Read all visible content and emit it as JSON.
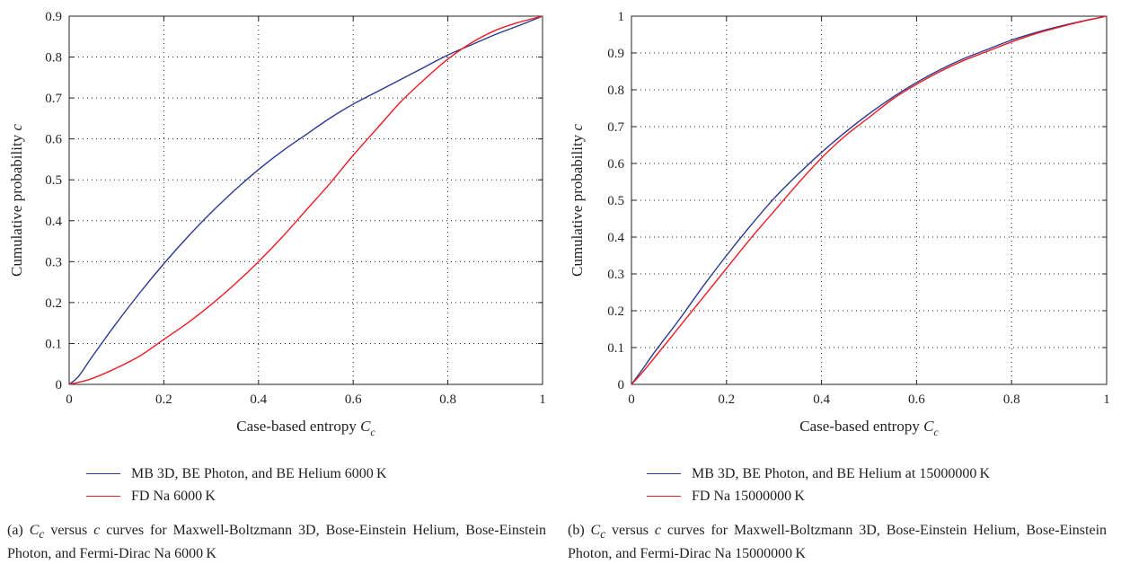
{
  "colors": {
    "series1": "#2b3990",
    "series2": "#ed1c24",
    "axis": "#231f20",
    "grid": "#231f20"
  },
  "panels": [
    {
      "caption": {
        "prefix": "(a)",
        "symbol": "C",
        "subscript": "c",
        "middle": "versus",
        "var": "c",
        "rest": "curves for Maxwell-Boltzmann 3D, Bose-Einstein Helium, Bose-Einstein Photon, and Fermi-Dirac Na 6000 K"
      }
    },
    {
      "caption": {
        "prefix": "(b)",
        "symbol": "C",
        "subscript": "c",
        "middle": "versus",
        "var": "c",
        "rest": "curves for Maxwell-Boltzmann 3D, Bose-Einstein Helium, Bose-Einstein Photon, and Fermi-Dirac Na 15000000 K"
      }
    }
  ],
  "chart_data": [
    {
      "type": "line",
      "xlabel": "Case-based entropy",
      "xlabel_symbol": "C",
      "xlabel_sub": "c",
      "ylabel": "Cumulative probability",
      "ylabel_symbol": "c",
      "xlim": [
        0,
        1
      ],
      "ylim": [
        0,
        0.9
      ],
      "xticks": [
        0,
        0.2,
        0.4,
        0.6,
        0.8,
        1
      ],
      "xtick_labels": [
        "0",
        "0.2",
        "0.4",
        "0.6",
        "0.8",
        "1"
      ],
      "yticks": [
        0,
        0.1,
        0.2,
        0.3,
        0.4,
        0.5,
        0.6,
        0.7,
        0.8,
        0.9
      ],
      "ytick_labels": [
        "0",
        "0.1",
        "0.2",
        "0.3",
        "0.4",
        "0.5",
        "0.6",
        "0.7",
        "0.8",
        "0.9"
      ],
      "grid": true,
      "legend_position": "below",
      "series": [
        {
          "name": "MB 3D, BE Photon, and BE Helium 6000 K",
          "color": "#2b3990",
          "x": [
            0,
            0.02,
            0.05,
            0.1,
            0.15,
            0.2,
            0.25,
            0.3,
            0.35,
            0.4,
            0.45,
            0.5,
            0.55,
            0.6,
            0.65,
            0.7,
            0.75,
            0.8,
            0.85,
            0.9,
            0.95,
            1
          ],
          "y": [
            0,
            0.02,
            0.07,
            0.15,
            0.225,
            0.295,
            0.36,
            0.42,
            0.475,
            0.525,
            0.57,
            0.61,
            0.65,
            0.685,
            0.715,
            0.745,
            0.775,
            0.805,
            0.83,
            0.855,
            0.877,
            0.9
          ]
        },
        {
          "name": "FD Na 6000 K",
          "color": "#ed1c24",
          "x": [
            0,
            0.02,
            0.05,
            0.1,
            0.15,
            0.2,
            0.25,
            0.3,
            0.35,
            0.4,
            0.45,
            0.5,
            0.55,
            0.6,
            0.65,
            0.7,
            0.75,
            0.8,
            0.85,
            0.9,
            0.95,
            1
          ],
          "y": [
            0,
            0.005,
            0.015,
            0.04,
            0.07,
            0.11,
            0.15,
            0.195,
            0.245,
            0.3,
            0.36,
            0.425,
            0.49,
            0.56,
            0.625,
            0.69,
            0.745,
            0.795,
            0.835,
            0.865,
            0.885,
            0.9
          ]
        }
      ]
    },
    {
      "type": "line",
      "xlabel": "Case-based entropy",
      "xlabel_symbol": "C",
      "xlabel_sub": "c",
      "ylabel": "Cumulative probability",
      "ylabel_symbol": "c",
      "xlim": [
        0,
        1
      ],
      "ylim": [
        0,
        1
      ],
      "xticks": [
        0,
        0.2,
        0.4,
        0.6,
        0.8,
        1
      ],
      "xtick_labels": [
        "0",
        "0.2",
        "0.4",
        "0.6",
        "0.8",
        "1"
      ],
      "yticks": [
        0,
        0.1,
        0.2,
        0.3,
        0.4,
        0.5,
        0.6,
        0.7,
        0.8,
        0.9,
        1
      ],
      "ytick_labels": [
        "0",
        "0.1",
        "0.2",
        "0.3",
        "0.4",
        "0.5",
        "0.6",
        "0.7",
        "0.8",
        "0.9",
        "1"
      ],
      "grid": true,
      "legend_position": "below",
      "series": [
        {
          "name": "MB 3D, BE Photon, and BE Helium at 15000000 K",
          "color": "#2b3990",
          "x": [
            0,
            0.02,
            0.05,
            0.1,
            0.15,
            0.2,
            0.25,
            0.3,
            0.35,
            0.4,
            0.45,
            0.5,
            0.55,
            0.6,
            0.65,
            0.7,
            0.75,
            0.8,
            0.85,
            0.9,
            0.95,
            1
          ],
          "y": [
            0,
            0.035,
            0.09,
            0.175,
            0.265,
            0.35,
            0.43,
            0.505,
            0.57,
            0.63,
            0.685,
            0.735,
            0.78,
            0.82,
            0.855,
            0.885,
            0.91,
            0.935,
            0.955,
            0.972,
            0.987,
            1
          ]
        },
        {
          "name": "FD Na 15000000 K",
          "color": "#ed1c24",
          "x": [
            0,
            0.02,
            0.05,
            0.1,
            0.15,
            0.2,
            0.25,
            0.3,
            0.35,
            0.4,
            0.45,
            0.5,
            0.55,
            0.6,
            0.65,
            0.7,
            0.75,
            0.8,
            0.85,
            0.9,
            0.95,
            1
          ],
          "y": [
            0,
            0.028,
            0.075,
            0.155,
            0.235,
            0.315,
            0.395,
            0.47,
            0.545,
            0.615,
            0.675,
            0.725,
            0.775,
            0.815,
            0.85,
            0.88,
            0.905,
            0.93,
            0.952,
            0.97,
            0.986,
            1
          ]
        }
      ]
    }
  ]
}
